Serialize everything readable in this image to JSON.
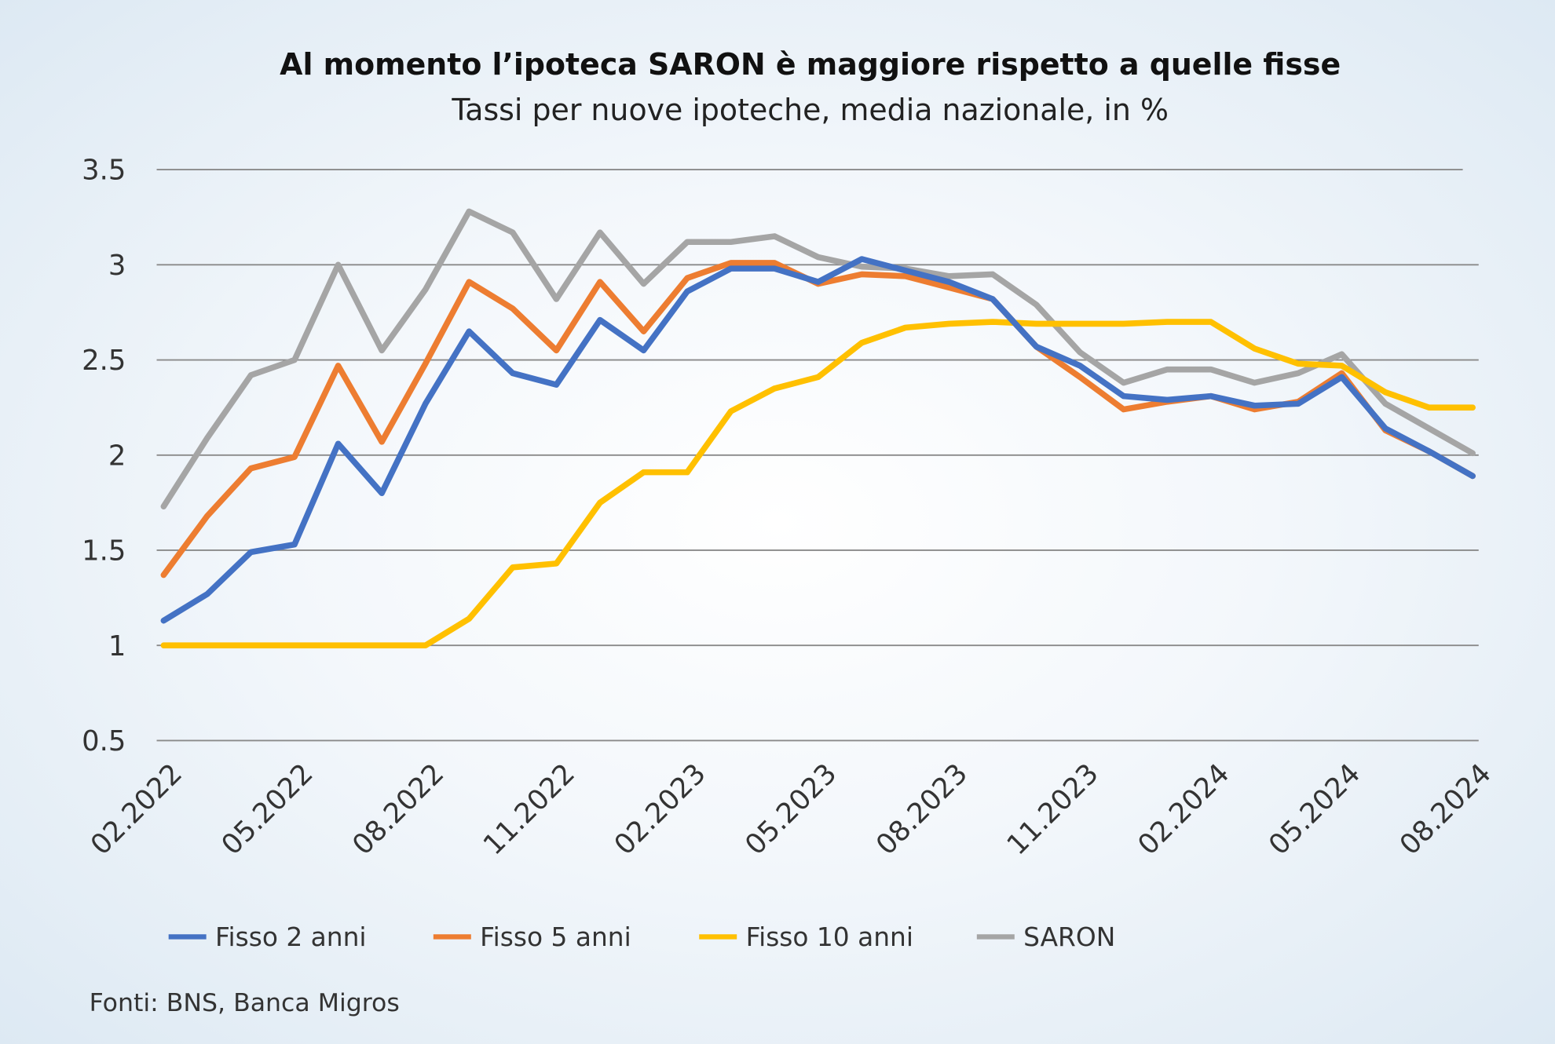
{
  "chart_data": {
    "type": "line",
    "title": "Al momento l’ipoteca SARON è maggiore rispetto a quelle fisse",
    "subtitle": "Tassi per nuove ipoteche, media nazionale, in %",
    "xlabel": "",
    "ylabel": "",
    "ylim": [
      0.5,
      3.5
    ],
    "yticks": [
      "0.5",
      "1",
      "1.5",
      "2",
      "2.5",
      "3",
      "3.5"
    ],
    "x": [
      "02.2022",
      "03.2022",
      "04.2022",
      "05.2022",
      "06.2022",
      "07.2022",
      "08.2022",
      "09.2022",
      "10.2022",
      "11.2022",
      "12.2022",
      "01.2023",
      "02.2023",
      "03.2023",
      "04.2023",
      "05.2023",
      "06.2023",
      "07.2023",
      "08.2023",
      "09.2023",
      "10.2023",
      "11.2023",
      "12.2023",
      "01.2024",
      "02.2024",
      "03.2024",
      "04.2024",
      "05.2024",
      "06.2024",
      "07.2024",
      "08.2024"
    ],
    "xtick_labels": [
      "02.2022",
      "05.2022",
      "08.2022",
      "11.2022",
      "02.2023",
      "05.2023",
      "08.2023",
      "11.2023",
      "02.2024",
      "05.2024",
      "08.2024"
    ],
    "grid": true,
    "legend_placement": "bottom",
    "series": [
      {
        "name": "Fisso 2 anni",
        "color": "#4472c4",
        "values": [
          1.13,
          1.27,
          1.49,
          1.53,
          2.06,
          1.8,
          2.27,
          2.65,
          2.43,
          2.37,
          2.71,
          2.55,
          2.86,
          2.98,
          2.98,
          2.91,
          3.03,
          2.97,
          2.91,
          2.82,
          2.57,
          2.47,
          2.31,
          2.29,
          2.31,
          2.26,
          2.27,
          2.41,
          2.14,
          2.02,
          1.89
        ]
      },
      {
        "name": "Fisso 5 anni",
        "color": "#ed7d31",
        "values": [
          1.37,
          1.68,
          1.93,
          1.99,
          2.47,
          2.07,
          2.48,
          2.91,
          2.77,
          2.55,
          2.91,
          2.65,
          2.93,
          3.01,
          3.01,
          2.9,
          2.95,
          2.94,
          2.88,
          2.82,
          2.57,
          2.41,
          2.24,
          2.28,
          2.31,
          2.24,
          2.28,
          2.43,
          2.13,
          2.02,
          1.89
        ]
      },
      {
        "name": "Fisso 10 anni",
        "color": "#ffc000",
        "values": [
          1.0,
          1.0,
          1.0,
          1.0,
          1.0,
          1.0,
          1.0,
          1.14,
          1.41,
          1.43,
          1.75,
          1.91,
          1.91,
          2.23,
          2.35,
          2.41,
          2.59,
          2.67,
          2.69,
          2.7,
          2.69,
          2.69,
          2.69,
          2.7,
          2.7,
          2.56,
          2.48,
          2.47,
          2.33,
          2.25,
          2.25
        ]
      },
      {
        "name": "SARON",
        "color": "#a5a5a5",
        "values": [
          1.73,
          2.09,
          2.42,
          2.5,
          3.0,
          2.55,
          2.87,
          3.28,
          3.17,
          2.82,
          3.17,
          2.9,
          3.12,
          3.12,
          3.15,
          3.04,
          2.99,
          2.98,
          2.94,
          2.95,
          2.79,
          2.54,
          2.38,
          2.45,
          2.45,
          2.38,
          2.43,
          2.53,
          2.27,
          2.14,
          2.01
        ]
      }
    ],
    "source": "Fonti: BNS, Banca Migros"
  }
}
